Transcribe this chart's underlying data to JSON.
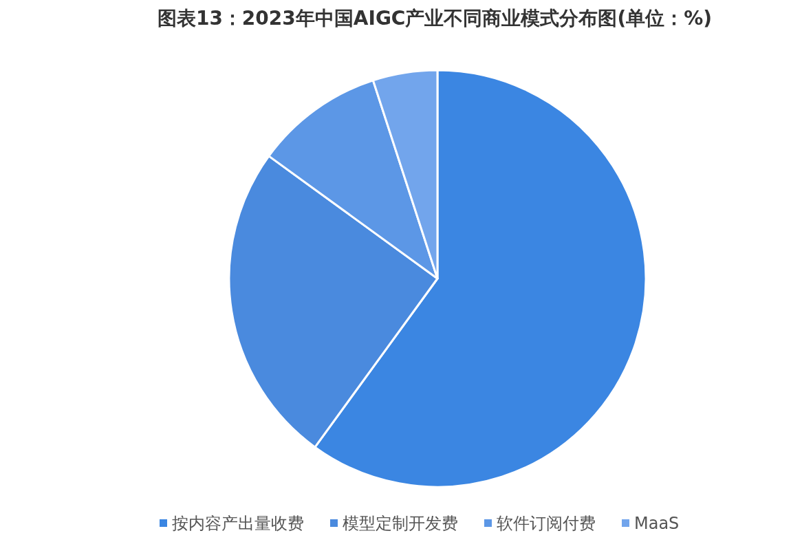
{
  "chart_data": {
    "type": "pie",
    "title": "图表13：2023年中国AIGC产业不同商业模式分布图(单位：%)",
    "categories": [
      "按内容产出量收费",
      "模型定制开发费",
      "软件订阅付费",
      "MaaS"
    ],
    "values": [
      60,
      25,
      10,
      5
    ],
    "colors": [
      "#3b86e2",
      "#4a8ade",
      "#5c97e6",
      "#72a5ec"
    ],
    "legend": "bottom"
  }
}
